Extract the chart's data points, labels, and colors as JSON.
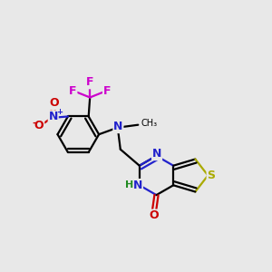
{
  "bg": "#e8e8e8",
  "lw": 1.6,
  "off": 0.007,
  "fs": 9,
  "colors": {
    "C": "#000000",
    "N": "#2222cc",
    "O": "#cc0000",
    "S": "#aaaa00",
    "F": "#cc00cc",
    "H": "#228B22"
  }
}
